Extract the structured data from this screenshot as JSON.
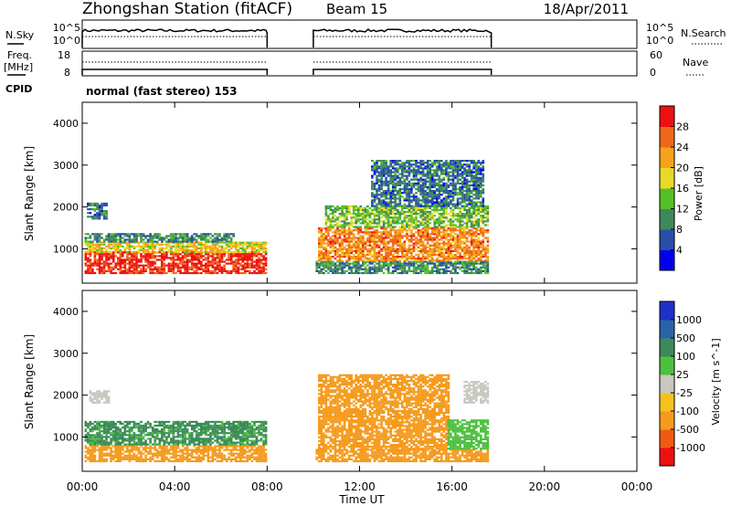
{
  "header": {
    "station": "Zhongshan Station (fitACF)",
    "beam": "Beam 15",
    "date": "18/Apr/2011"
  },
  "noise_panel": {
    "left_label": "N.Sky",
    "left_ticks": [
      "10^5",
      "10^0"
    ],
    "right_ticks": [
      "10^5",
      "10^0"
    ],
    "right_label": "N.Search"
  },
  "freq_panel": {
    "left_label_line1": "Freq.",
    "left_label_line2": "[MHz]",
    "left_ticks": [
      "18",
      "8"
    ],
    "right_ticks": [
      "60",
      "0"
    ],
    "right_label": "Nave"
  },
  "cpid_panel": {
    "label": "CPID",
    "value": "normal (fast stereo) 153"
  },
  "x_axis": {
    "label": "Time UT",
    "ticks": [
      "00:00",
      "04:00",
      "08:00",
      "12:00",
      "16:00",
      "20:00",
      "00:00"
    ],
    "range_hours": [
      0,
      24
    ]
  },
  "y_axis": {
    "label": "Slant Range [km]",
    "ticks": [
      "1000",
      "2000",
      "3000",
      "4000"
    ],
    "range_km": [
      180,
      4500
    ]
  },
  "colors": {
    "power": [
      "#0000ee",
      "#2a4ea8",
      "#3c8a5a",
      "#55c026",
      "#e8d82a",
      "#f7a21a",
      "#f0661a",
      "#ee1010"
    ],
    "velocity": [
      "#ee1010",
      "#f05a14",
      "#f59a1c",
      "#f5c21e",
      "#c8c8c0",
      "#4ec040",
      "#3c8a5a",
      "#2a62a8",
      "#1f2fc8"
    ]
  },
  "chart_data": [
    {
      "type": "heatmap",
      "panel": "power",
      "colorbar_label": "Power [dB]",
      "colorbar_ticks": [
        "4",
        "8",
        "12",
        "16",
        "20",
        "24",
        "28"
      ],
      "colorbar_range": [
        0,
        32
      ],
      "observation_intervals_ut": [
        [
          0.0,
          8.0
        ],
        [
          10.0,
          17.7
        ]
      ],
      "blobs": [
        {
          "t": [
            0.1,
            7.9
          ],
          "r": [
            400,
            900
          ],
          "value": 29
        },
        {
          "t": [
            0.1,
            7.9
          ],
          "r": [
            900,
            1150
          ],
          "value": 19
        },
        {
          "t": [
            0.1,
            6.5
          ],
          "r": [
            1150,
            1350
          ],
          "value": 10
        },
        {
          "t": [
            0.2,
            1.0
          ],
          "r": [
            1700,
            2100
          ],
          "value": 8
        },
        {
          "t": [
            10.1,
            17.6
          ],
          "r": [
            400,
            700
          ],
          "value": 10
        },
        {
          "t": [
            10.2,
            17.6
          ],
          "r": [
            700,
            1500
          ],
          "value": 24
        },
        {
          "t": [
            10.5,
            17.6
          ],
          "r": [
            1500,
            2000
          ],
          "value": 14
        },
        {
          "t": [
            12.5,
            17.4
          ],
          "r": [
            2000,
            3100
          ],
          "value": 8
        }
      ]
    },
    {
      "type": "heatmap",
      "panel": "velocity",
      "colorbar_label": "Velocity [m s^-1]",
      "colorbar_ticks": [
        "1000",
        "500",
        "100",
        "25",
        "-25",
        "-100",
        "-500",
        "-1000"
      ],
      "colorbar_range": [
        -1200,
        1200
      ],
      "observation_intervals_ut": [
        [
          0.0,
          8.0
        ],
        [
          10.0,
          17.7
        ]
      ],
      "blobs": [
        {
          "t": [
            0.1,
            7.9
          ],
          "r": [
            400,
            800
          ],
          "value": -300
        },
        {
          "t": [
            0.1,
            7.9
          ],
          "r": [
            800,
            1350
          ],
          "value": 150
        },
        {
          "t": [
            0.3,
            1.2
          ],
          "r": [
            1800,
            2100
          ],
          "value": 0
        },
        {
          "t": [
            10.1,
            17.6
          ],
          "r": [
            400,
            700
          ],
          "value": -300
        },
        {
          "t": [
            10.2,
            15.8
          ],
          "r": [
            700,
            2500
          ],
          "value": -300
        },
        {
          "t": [
            15.8,
            17.6
          ],
          "r": [
            700,
            1400
          ],
          "value": 60
        },
        {
          "t": [
            16.5,
            17.6
          ],
          "r": [
            1800,
            2300
          ],
          "value": 0
        }
      ]
    }
  ]
}
